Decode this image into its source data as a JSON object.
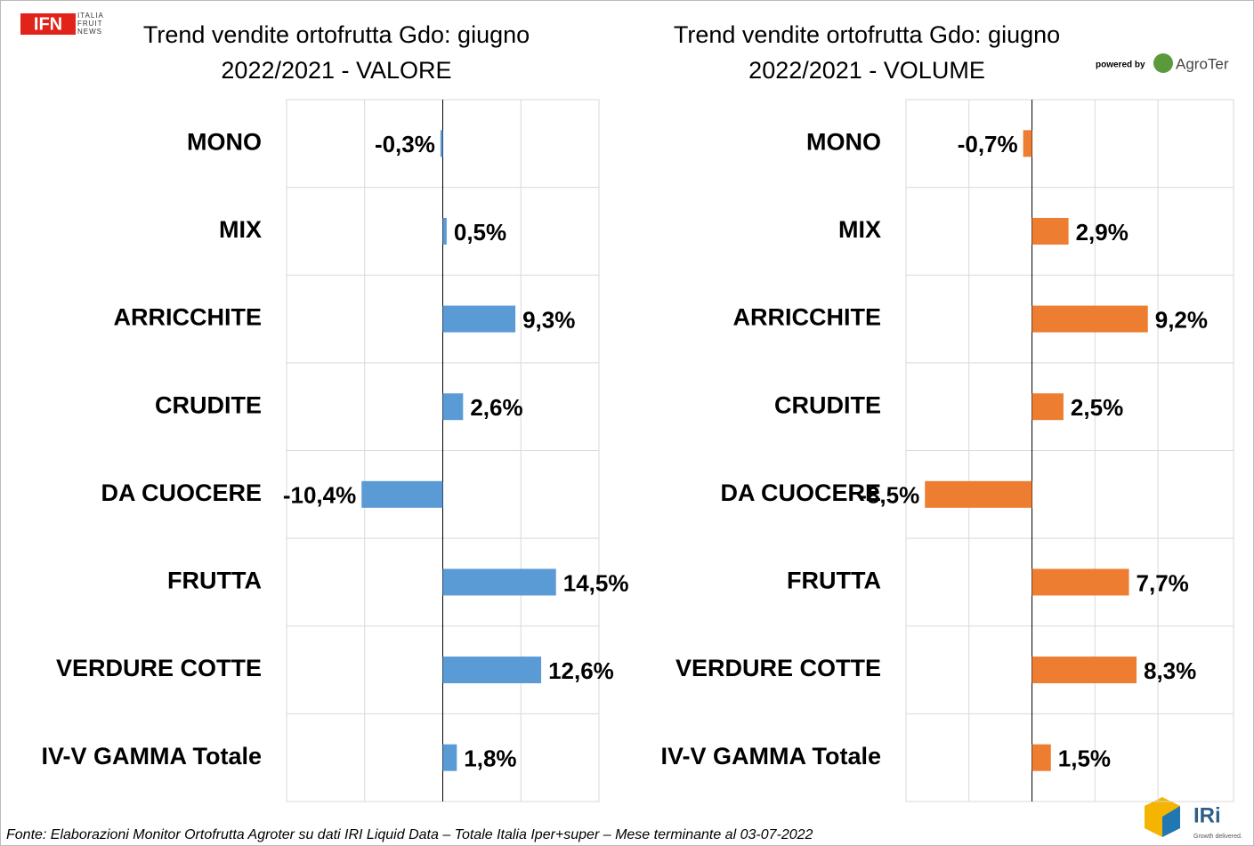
{
  "chart_data": [
    {
      "type": "hbar",
      "title": "Trend vendite ortofrutta Gdo: giugno 2022/2021 - VALORE",
      "categories": [
        "MONO",
        "MIX",
        "ARRICCHITE",
        "CRUDITE",
        "DA CUOCERE",
        "FRUTTA",
        "VERDURE COTTE",
        "IV-V GAMMA Totale"
      ],
      "values": [
        -0.3,
        0.5,
        9.3,
        2.6,
        -10.4,
        14.5,
        12.6,
        1.8
      ],
      "value_labels": [
        "-0,3%",
        "0,5%",
        "9,3%",
        "2,6%",
        "-10,4%",
        "14,5%",
        "12,6%",
        "1,8%"
      ],
      "color": "#5b9bd5",
      "xlim": [
        -20,
        20
      ],
      "xticks": [
        -20,
        -10,
        0,
        10,
        20
      ],
      "grid": true
    },
    {
      "type": "hbar",
      "title": "Trend vendite ortofrutta Gdo: giugno 2022/2021 - VOLUME",
      "categories": [
        "MONO",
        "MIX",
        "ARRICCHITE",
        "CRUDITE",
        "DA CUOCERE",
        "FRUTTA",
        "VERDURE COTTE",
        "IV-V GAMMA Totale"
      ],
      "values": [
        -0.7,
        2.9,
        9.2,
        2.5,
        -8.5,
        7.7,
        8.3,
        1.5
      ],
      "value_labels": [
        "-0,7%",
        "2,9%",
        "9,2%",
        "2,5%",
        "-8,5%",
        "7,7%",
        "8,3%",
        "1,5%"
      ],
      "color": "#ed7d31",
      "xlim": [
        -10,
        16
      ],
      "xticks": [
        -10,
        -5,
        0,
        5,
        10
      ],
      "grid": true
    }
  ],
  "logos": {
    "ifn": "IFN",
    "ifn_sub": "ITALIA FRUIT NEWS",
    "powered": "powered by",
    "agroter": "AgroTer",
    "iri": "IRi",
    "iri_sub": "Growth delivered."
  },
  "footer": "Fonte: Elaborazioni Monitor Ortofrutta Agroter su dati IRI Liquid Data – Totale Italia Iper+super – Mese terminante al 03-07-2022"
}
